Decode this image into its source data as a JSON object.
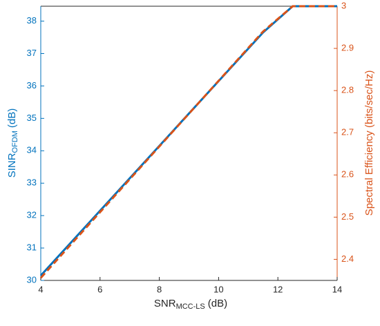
{
  "chart_data": {
    "type": "line",
    "x_label": {
      "text": "SNR",
      "sub": "MCC-LS",
      "suffix": "(dB)"
    },
    "y_label": {
      "text": "SINR",
      "sub": "OFDM",
      "suffix": "(dB)"
    },
    "y2_label": "Spectral Efficiency (bits/sec/Hz)",
    "x": [
      4,
      11.5,
      12.5,
      14
    ],
    "series": [
      {
        "color": "#0072BD",
        "values": [
          30.15,
          37.65,
          38.46,
          38.46
        ]
      },
      {
        "color": "#D95319",
        "axis": "y2",
        "dashed": true,
        "values": [
          2.356,
          2.94,
          3,
          3
        ]
      }
    ],
    "xlim": [
      4,
      14
    ],
    "xticks": [
      4,
      6,
      8,
      10,
      12,
      14
    ],
    "ylim": [
      30,
      38.46
    ],
    "yticks": [
      30,
      31,
      32,
      33,
      34,
      35,
      36,
      37,
      38
    ],
    "y2lim": [
      2.35,
      3
    ],
    "y2ticks": [
      2.4,
      2.5,
      2.6,
      2.7,
      2.8,
      2.9,
      3
    ]
  }
}
